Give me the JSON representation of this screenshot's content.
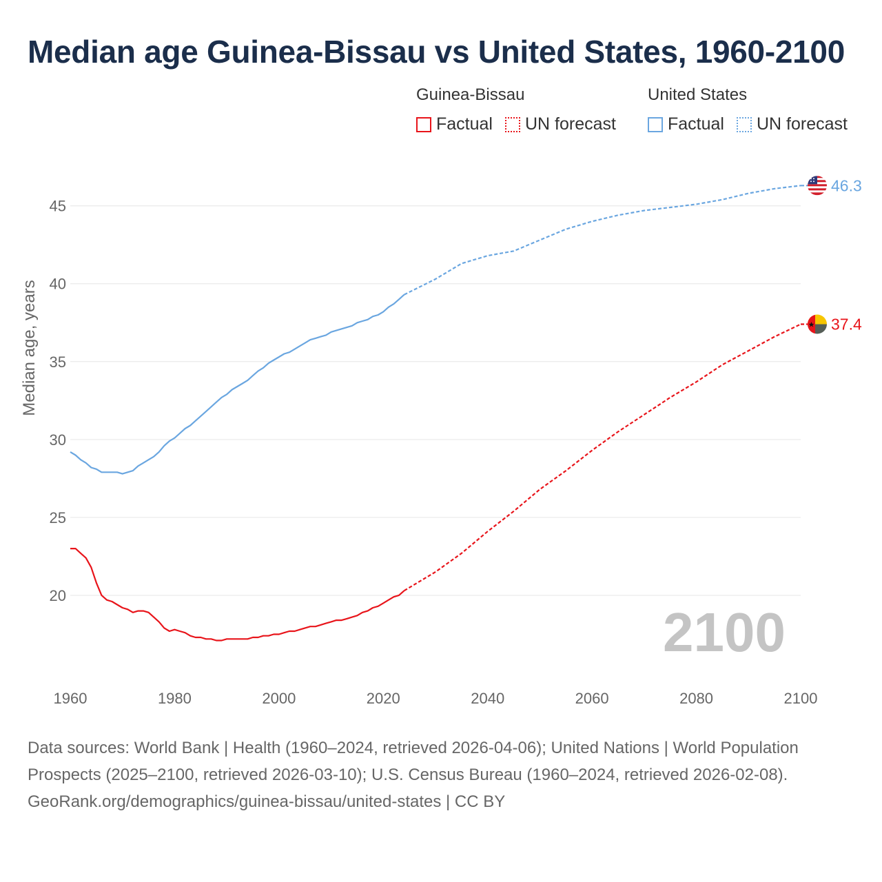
{
  "title": "Median age Guinea-Bissau vs United States, 1960-2100",
  "colors": {
    "guinea_bissau": "#e8141a",
    "united_states": "#6aa6e0"
  },
  "legend": {
    "groups": [
      {
        "country": "Guinea-Bissau",
        "factual": "Factual",
        "forecast": "UN forecast"
      },
      {
        "country": "United States",
        "factual": "Factual",
        "forecast": "UN forecast"
      }
    ]
  },
  "current_year": "2100",
  "footer": {
    "sources": "Data sources: World Bank | Health (1960–2024, retrieved 2026-04-06); United Nations | World Population Prospects (2025–2100, retrieved 2026-03-10); U.S. Census Bureau (1960–2024, retrieved 2026-02-08).",
    "credit": "GeoRank.org/demographics/guinea-bissau/united-states | CC BY"
  },
  "chart_data": {
    "type": "line",
    "title": "Median age Guinea-Bissau vs United States, 1960-2100",
    "xlabel": "",
    "ylabel": "Median age, years",
    "xlim": [
      1960,
      2100
    ],
    "ylim": [
      15,
      46.8
    ],
    "x_ticks": [
      1960,
      1980,
      2000,
      2020,
      2040,
      2060,
      2080,
      2100
    ],
    "y_ticks": [
      20,
      25,
      30,
      35,
      40,
      45
    ],
    "grid": true,
    "forecast_start": 2024,
    "series": [
      {
        "name": "Guinea-Bissau",
        "end_label": "37.4",
        "points": [
          [
            1960,
            23.0
          ],
          [
            1961,
            23.0
          ],
          [
            1962,
            22.7
          ],
          [
            1963,
            22.4
          ],
          [
            1964,
            21.8
          ],
          [
            1965,
            20.8
          ],
          [
            1966,
            20.0
          ],
          [
            1967,
            19.7
          ],
          [
            1968,
            19.6
          ],
          [
            1969,
            19.4
          ],
          [
            1970,
            19.2
          ],
          [
            1971,
            19.1
          ],
          [
            1972,
            18.9
          ],
          [
            1973,
            19.0
          ],
          [
            1974,
            19.0
          ],
          [
            1975,
            18.9
          ],
          [
            1976,
            18.6
          ],
          [
            1977,
            18.3
          ],
          [
            1978,
            17.9
          ],
          [
            1979,
            17.7
          ],
          [
            1980,
            17.8
          ],
          [
            1981,
            17.7
          ],
          [
            1982,
            17.6
          ],
          [
            1983,
            17.4
          ],
          [
            1984,
            17.3
          ],
          [
            1985,
            17.3
          ],
          [
            1986,
            17.2
          ],
          [
            1987,
            17.2
          ],
          [
            1988,
            17.1
          ],
          [
            1989,
            17.1
          ],
          [
            1990,
            17.2
          ],
          [
            1991,
            17.2
          ],
          [
            1992,
            17.2
          ],
          [
            1993,
            17.2
          ],
          [
            1994,
            17.2
          ],
          [
            1995,
            17.3
          ],
          [
            1996,
            17.3
          ],
          [
            1997,
            17.4
          ],
          [
            1998,
            17.4
          ],
          [
            1999,
            17.5
          ],
          [
            2000,
            17.5
          ],
          [
            2001,
            17.6
          ],
          [
            2002,
            17.7
          ],
          [
            2003,
            17.7
          ],
          [
            2004,
            17.8
          ],
          [
            2005,
            17.9
          ],
          [
            2006,
            18.0
          ],
          [
            2007,
            18.0
          ],
          [
            2008,
            18.1
          ],
          [
            2009,
            18.2
          ],
          [
            2010,
            18.3
          ],
          [
            2011,
            18.4
          ],
          [
            2012,
            18.4
          ],
          [
            2013,
            18.5
          ],
          [
            2014,
            18.6
          ],
          [
            2015,
            18.7
          ],
          [
            2016,
            18.9
          ],
          [
            2017,
            19.0
          ],
          [
            2018,
            19.2
          ],
          [
            2019,
            19.3
          ],
          [
            2020,
            19.5
          ],
          [
            2021,
            19.7
          ],
          [
            2022,
            19.9
          ],
          [
            2023,
            20.0
          ],
          [
            2024,
            20.3
          ],
          [
            2030,
            21.5
          ],
          [
            2035,
            22.7
          ],
          [
            2040,
            24.1
          ],
          [
            2045,
            25.4
          ],
          [
            2050,
            26.8
          ],
          [
            2055,
            28.0
          ],
          [
            2060,
            29.3
          ],
          [
            2065,
            30.5
          ],
          [
            2070,
            31.6
          ],
          [
            2075,
            32.7
          ],
          [
            2080,
            33.7
          ],
          [
            2085,
            34.8
          ],
          [
            2090,
            35.7
          ],
          [
            2095,
            36.6
          ],
          [
            2100,
            37.4
          ]
        ]
      },
      {
        "name": "United States",
        "end_label": "46.3",
        "points": [
          [
            1960,
            29.2
          ],
          [
            1961,
            29.0
          ],
          [
            1962,
            28.7
          ],
          [
            1963,
            28.5
          ],
          [
            1964,
            28.2
          ],
          [
            1965,
            28.1
          ],
          [
            1966,
            27.9
          ],
          [
            1967,
            27.9
          ],
          [
            1968,
            27.9
          ],
          [
            1969,
            27.9
          ],
          [
            1970,
            27.8
          ],
          [
            1971,
            27.9
          ],
          [
            1972,
            28.0
          ],
          [
            1973,
            28.3
          ],
          [
            1974,
            28.5
          ],
          [
            1975,
            28.7
          ],
          [
            1976,
            28.9
          ],
          [
            1977,
            29.2
          ],
          [
            1978,
            29.6
          ],
          [
            1979,
            29.9
          ],
          [
            1980,
            30.1
          ],
          [
            1981,
            30.4
          ],
          [
            1982,
            30.7
          ],
          [
            1983,
            30.9
          ],
          [
            1984,
            31.2
          ],
          [
            1985,
            31.5
          ],
          [
            1986,
            31.8
          ],
          [
            1987,
            32.1
          ],
          [
            1988,
            32.4
          ],
          [
            1989,
            32.7
          ],
          [
            1990,
            32.9
          ],
          [
            1991,
            33.2
          ],
          [
            1992,
            33.4
          ],
          [
            1993,
            33.6
          ],
          [
            1994,
            33.8
          ],
          [
            1995,
            34.1
          ],
          [
            1996,
            34.4
          ],
          [
            1997,
            34.6
          ],
          [
            1998,
            34.9
          ],
          [
            1999,
            35.1
          ],
          [
            2000,
            35.3
          ],
          [
            2001,
            35.5
          ],
          [
            2002,
            35.6
          ],
          [
            2003,
            35.8
          ],
          [
            2004,
            36.0
          ],
          [
            2005,
            36.2
          ],
          [
            2006,
            36.4
          ],
          [
            2007,
            36.5
          ],
          [
            2008,
            36.6
          ],
          [
            2009,
            36.7
          ],
          [
            2010,
            36.9
          ],
          [
            2011,
            37.0
          ],
          [
            2012,
            37.1
          ],
          [
            2013,
            37.2
          ],
          [
            2014,
            37.3
          ],
          [
            2015,
            37.5
          ],
          [
            2016,
            37.6
          ],
          [
            2017,
            37.7
          ],
          [
            2018,
            37.9
          ],
          [
            2019,
            38.0
          ],
          [
            2020,
            38.2
          ],
          [
            2021,
            38.5
          ],
          [
            2022,
            38.7
          ],
          [
            2023,
            39.0
          ],
          [
            2024,
            39.3
          ],
          [
            2030,
            40.3
          ],
          [
            2035,
            41.3
          ],
          [
            2040,
            41.8
          ],
          [
            2045,
            42.1
          ],
          [
            2050,
            42.8
          ],
          [
            2055,
            43.5
          ],
          [
            2060,
            44.0
          ],
          [
            2065,
            44.4
          ],
          [
            2070,
            44.7
          ],
          [
            2075,
            44.9
          ],
          [
            2080,
            45.1
          ],
          [
            2085,
            45.4
          ],
          [
            2090,
            45.8
          ],
          [
            2095,
            46.1
          ],
          [
            2100,
            46.3
          ]
        ]
      }
    ]
  }
}
